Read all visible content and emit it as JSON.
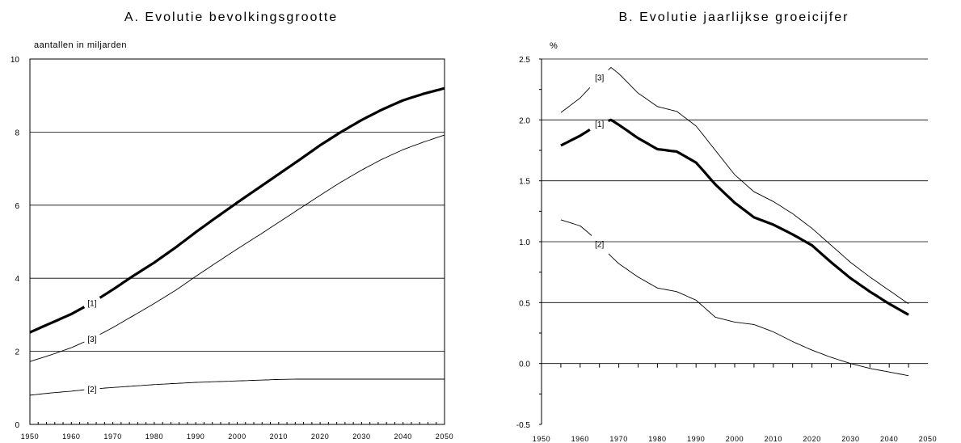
{
  "chart_data": [
    {
      "type": "line",
      "title": "A.  Evolutie bevolkingsgrootte",
      "ylabel": "aantallen in miljarden",
      "xlim": [
        1950,
        2050
      ],
      "ylim": [
        0,
        10
      ],
      "xticks": [
        1950,
        1960,
        1970,
        1980,
        1990,
        2000,
        2010,
        2020,
        2030,
        2040,
        2050
      ],
      "yticks": [
        0,
        2,
        4,
        6,
        8,
        10
      ],
      "grid": "horizontal",
      "series": [
        {
          "name": "[1]",
          "style": "bold",
          "label_at": 1965,
          "x": [
            1950,
            1955,
            1960,
            1965,
            1970,
            1975,
            1980,
            1985,
            1990,
            1995,
            2000,
            2005,
            2010,
            2015,
            2020,
            2025,
            2030,
            2035,
            2040,
            2045,
            2050
          ],
          "y": [
            2.52,
            2.77,
            3.02,
            3.33,
            3.69,
            4.07,
            4.43,
            4.83,
            5.26,
            5.67,
            6.07,
            6.46,
            6.85,
            7.24,
            7.64,
            8.0,
            8.33,
            8.62,
            8.87,
            9.05,
            9.2
          ]
        },
        {
          "name": "[3]",
          "style": "thin",
          "label_at": 1965,
          "x": [
            1950,
            1955,
            1960,
            1965,
            1970,
            1975,
            1980,
            1985,
            1990,
            1995,
            2000,
            2005,
            2010,
            2015,
            2020,
            2025,
            2030,
            2035,
            2040,
            2045,
            2050
          ],
          "y": [
            1.72,
            1.9,
            2.1,
            2.35,
            2.65,
            2.98,
            3.31,
            3.66,
            4.05,
            4.43,
            4.8,
            5.16,
            5.53,
            5.9,
            6.27,
            6.63,
            6.96,
            7.26,
            7.52,
            7.73,
            7.92
          ]
        },
        {
          "name": "[2]",
          "style": "thin",
          "label_at": 1965,
          "x": [
            1950,
            1955,
            1960,
            1965,
            1970,
            1975,
            1980,
            1985,
            1990,
            1995,
            2000,
            2005,
            2010,
            2015,
            2020,
            2025,
            2030,
            2035,
            2040,
            2045,
            2050
          ],
          "y": [
            0.8,
            0.86,
            0.91,
            0.97,
            1.01,
            1.05,
            1.09,
            1.12,
            1.15,
            1.17,
            1.19,
            1.21,
            1.23,
            1.24,
            1.24,
            1.24,
            1.24,
            1.24,
            1.24,
            1.24,
            1.24
          ]
        }
      ]
    },
    {
      "type": "line",
      "title": "B.  Evolutie jaarlijkse groeicijfer",
      "ylabel": "%",
      "xlim": [
        1950,
        2050
      ],
      "ylim": [
        -0.5,
        2.5
      ],
      "xticks": [
        1950,
        1960,
        1970,
        1980,
        1990,
        2000,
        2010,
        2020,
        2030,
        2040,
        2050
      ],
      "yticks": [
        "-0.5",
        "0.0",
        "0.5",
        "1.0",
        "1.5",
        "2.0",
        "2.5"
      ],
      "grid": "horizontal",
      "series": [
        {
          "name": "[3]",
          "style": "thin",
          "label_at": 1965,
          "x": [
            1955,
            1960,
            1965,
            1968,
            1970,
            1975,
            1980,
            1985,
            1990,
            1995,
            2000,
            2005,
            2010,
            2015,
            2020,
            2025,
            2030,
            2035,
            2040,
            2045
          ],
          "y": [
            2.06,
            2.18,
            2.35,
            2.43,
            2.38,
            2.22,
            2.11,
            2.07,
            1.95,
            1.75,
            1.55,
            1.41,
            1.33,
            1.23,
            1.11,
            0.97,
            0.83,
            0.71,
            0.6,
            0.49
          ]
        },
        {
          "name": "[1]",
          "style": "bold",
          "label_at": 1965,
          "x": [
            1955,
            1960,
            1965,
            1968,
            1970,
            1975,
            1980,
            1985,
            1990,
            1995,
            2000,
            2005,
            2010,
            2015,
            2020,
            2025,
            2030,
            2035,
            2040,
            2045
          ],
          "y": [
            1.79,
            1.87,
            1.97,
            2.0,
            1.96,
            1.85,
            1.76,
            1.74,
            1.65,
            1.47,
            1.32,
            1.2,
            1.14,
            1.06,
            0.97,
            0.83,
            0.7,
            0.59,
            0.49,
            0.4
          ]
        },
        {
          "name": "[2]",
          "style": "thin",
          "label_at": 1965,
          "x": [
            1955,
            1960,
            1963,
            1968,
            1970,
            1975,
            1980,
            1985,
            1990,
            1995,
            2000,
            2005,
            2010,
            2015,
            2020,
            2025,
            2030,
            2035,
            2040,
            2045
          ],
          "y": [
            1.18,
            1.13,
            1.05,
            0.88,
            0.82,
            0.71,
            0.62,
            0.59,
            0.52,
            0.38,
            0.34,
            0.32,
            0.26,
            0.18,
            0.11,
            0.05,
            0.0,
            -0.04,
            -0.07,
            -0.1
          ]
        }
      ]
    }
  ]
}
